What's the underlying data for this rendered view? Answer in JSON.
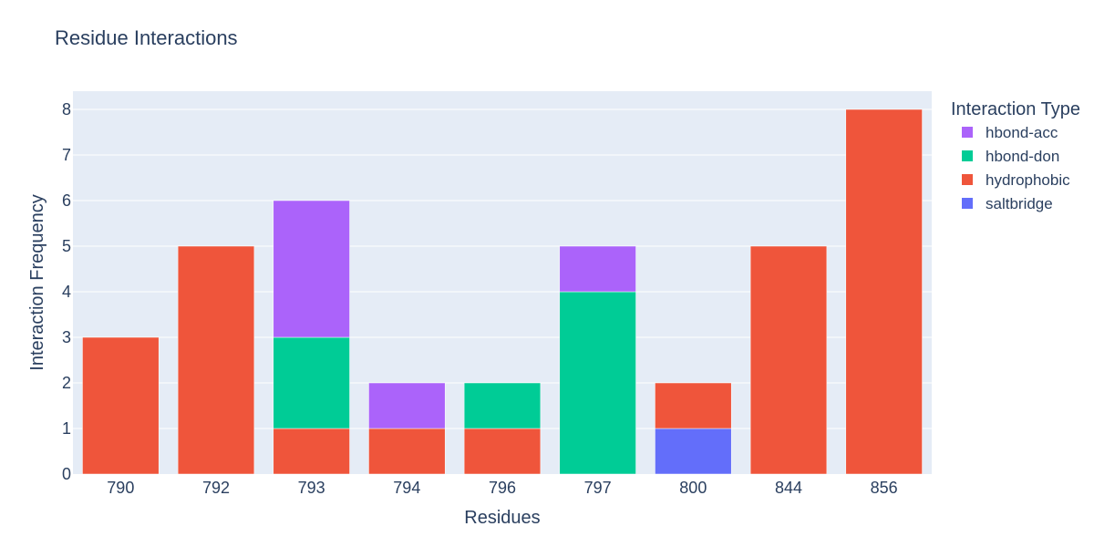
{
  "chart_data": {
    "type": "bar",
    "barmode": "stack",
    "title": "Residue Interactions",
    "xlabel": "Residues",
    "ylabel": "Interaction Frequency",
    "categories": [
      "790",
      "792",
      "793",
      "794",
      "796",
      "797",
      "800",
      "844",
      "856"
    ],
    "ylim": [
      0,
      8.4
    ],
    "yticks": [
      0,
      1,
      2,
      3,
      4,
      5,
      6,
      7,
      8
    ],
    "grid": true,
    "plot_background": "#e5ecf6",
    "legend": {
      "title": "Interaction Type",
      "placement": "right",
      "order": [
        "hbond-acc",
        "hbond-don",
        "hydrophobic",
        "saltbridge"
      ]
    },
    "stack_order": [
      "saltbridge",
      "hydrophobic",
      "hbond-don",
      "hbond-acc"
    ],
    "series": [
      {
        "name": "hbond-acc",
        "color": "#ab63fa",
        "values": [
          0,
          0,
          3,
          1,
          0,
          1,
          0,
          0,
          0
        ]
      },
      {
        "name": "hbond-don",
        "color": "#00cc96",
        "values": [
          0,
          0,
          2,
          0,
          1,
          4,
          0,
          0,
          0
        ]
      },
      {
        "name": "hydrophobic",
        "color": "#ef553b",
        "values": [
          3,
          5,
          1,
          1,
          1,
          0,
          1,
          5,
          8
        ]
      },
      {
        "name": "saltbridge",
        "color": "#636efa",
        "values": [
          0,
          0,
          0,
          0,
          0,
          0,
          1,
          0,
          0
        ]
      }
    ]
  }
}
